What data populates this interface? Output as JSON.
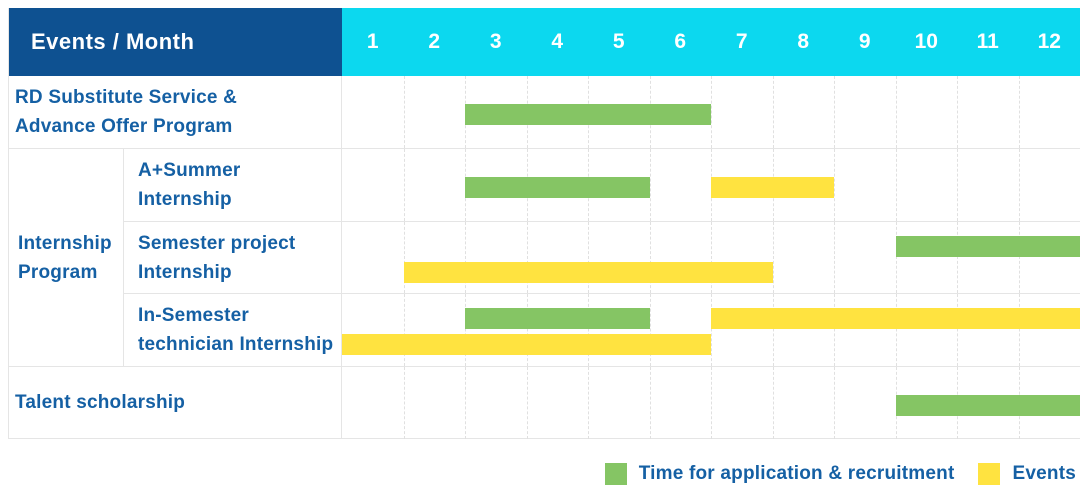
{
  "header": {
    "title": "Events / Month",
    "months": [
      "1",
      "2",
      "3",
      "4",
      "5",
      "6",
      "7",
      "8",
      "9",
      "10",
      "11",
      "12"
    ]
  },
  "group": {
    "label": "Internship\nProgram"
  },
  "rows": [
    {
      "label": "RD Substitute Service &\nAdvance Offer Program"
    },
    {
      "label": "A+Summer\nInternship"
    },
    {
      "label": "Semester project\nInternship"
    },
    {
      "label": "In-Semester\ntechnician Internship"
    },
    {
      "label": "Talent scholarship"
    }
  ],
  "legend": [
    {
      "key": "recruitment",
      "label": "Time for application & recruitment",
      "color": "#85C564"
    },
    {
      "key": "events",
      "label": "Events",
      "color": "#FFE340"
    }
  ],
  "colors": {
    "header_blue": "#0E5191",
    "month_cyan": "#0CD8EF",
    "bar_green": "#85C564",
    "bar_yellow": "#FFE340",
    "text_blue": "#1560A4",
    "grid_line": "#E5E5E5",
    "grid_dash": "#E0E0E0"
  },
  "chart_data": {
    "type": "bar",
    "subtype": "gantt",
    "title": "Events / Month",
    "x_axis": {
      "label": "Month",
      "ticks": [
        1,
        2,
        3,
        4,
        5,
        6,
        7,
        8,
        9,
        10,
        11,
        12
      ],
      "range": [
        1,
        12
      ]
    },
    "legend_position": "bottom-right",
    "series_legend": [
      {
        "key": "recruitment",
        "label": "Time for application & recruitment",
        "color": "#85C564"
      },
      {
        "key": "events",
        "label": "Events",
        "color": "#FFE340"
      }
    ],
    "rows": [
      {
        "group": null,
        "label": "RD Substitute Service & Advance Offer Program",
        "bars": [
          {
            "series": "recruitment",
            "start_month": 3,
            "end_month": 6,
            "lane": "center"
          }
        ]
      },
      {
        "group": "Internship Program",
        "label": "A+Summer Internship",
        "bars": [
          {
            "series": "recruitment",
            "start_month": 3,
            "end_month": 5,
            "lane": "center"
          },
          {
            "series": "events",
            "start_month": 7,
            "end_month": 8,
            "lane": "center"
          }
        ]
      },
      {
        "group": "Internship Program",
        "label": "Semester project Internship",
        "bars": [
          {
            "series": "recruitment",
            "start_month": 10,
            "end_month": 12,
            "lane": "upper"
          },
          {
            "series": "events",
            "start_month": 2,
            "end_month": 7,
            "lane": "lower"
          }
        ]
      },
      {
        "group": "Internship Program",
        "label": "In-Semester technician Internship",
        "bars": [
          {
            "series": "recruitment",
            "start_month": 3,
            "end_month": 5,
            "lane": "upper"
          },
          {
            "series": "events",
            "start_month": 7,
            "end_month": 12,
            "lane": "upper"
          },
          {
            "series": "events",
            "start_month": 1,
            "end_month": 6,
            "lane": "lower"
          }
        ]
      },
      {
        "group": null,
        "label": "Talent scholarship",
        "bars": [
          {
            "series": "recruitment",
            "start_month": 10,
            "end_month": 12,
            "lane": "center"
          }
        ]
      }
    ]
  }
}
